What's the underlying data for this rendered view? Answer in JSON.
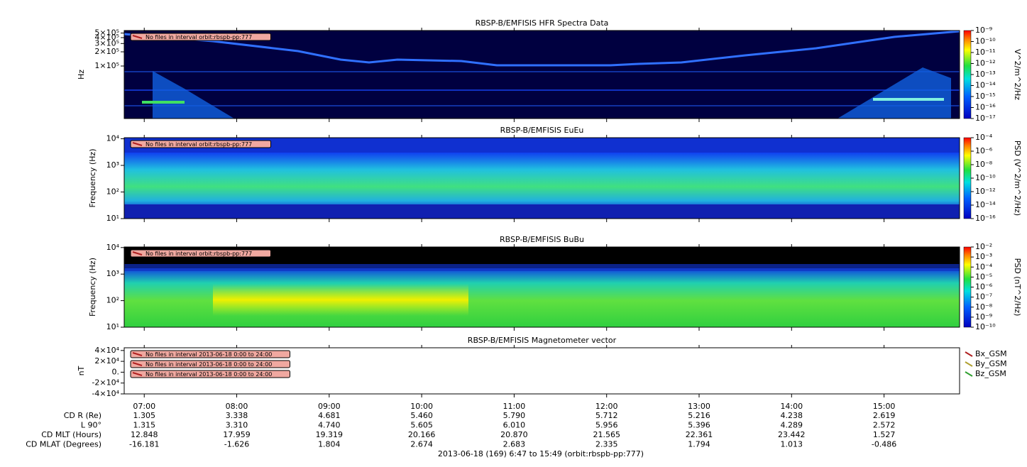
{
  "time_axis": {
    "xlim": [
      407,
      949
    ],
    "xticks": [
      {
        "value": 420,
        "label": "07:00"
      },
      {
        "value": 480,
        "label": "08:00"
      },
      {
        "value": 540,
        "label": "09:00"
      },
      {
        "value": 600,
        "label": "10:00"
      },
      {
        "value": 660,
        "label": "11:00"
      },
      {
        "value": 720,
        "label": "12:00"
      },
      {
        "value": 780,
        "label": "13:00"
      },
      {
        "value": 840,
        "label": "14:00"
      },
      {
        "value": 900,
        "label": "15:00"
      }
    ]
  },
  "panels": [
    {
      "title": "RBSP-B/EMFISIS  HFR Spectra Data",
      "ylabel": "Hz",
      "ylog": true,
      "ylim": [
        7700,
        566000
      ],
      "yticks": [
        {
          "value": 500000,
          "label": "5×10⁵"
        },
        {
          "value": 400000,
          "label": "4×10⁵"
        },
        {
          "value": 300000,
          "label": "3×10⁵"
        },
        {
          "value": 200000,
          "label": "2×10⁵"
        },
        {
          "value": 100000,
          "label": "1×10⁵"
        }
      ],
      "colorbar": {
        "label": "V^2/m^2/Hz",
        "zlim": [
          1e-17,
          1e-09
        ],
        "zticks": [
          {
            "value": 1e-09,
            "label": "10⁻⁹"
          },
          {
            "value": 1e-10,
            "label": "10⁻¹⁰"
          },
          {
            "value": 1e-11,
            "label": "10⁻¹¹"
          },
          {
            "value": 1e-12,
            "label": "10⁻¹²"
          },
          {
            "value": 1e-13,
            "label": "10⁻¹³"
          },
          {
            "value": 1e-14,
            "label": "10⁻¹⁴"
          },
          {
            "value": 1e-15,
            "label": "10⁻¹⁵"
          },
          {
            "value": 1e-16,
            "label": "10⁻¹⁶"
          },
          {
            "value": 1e-17,
            "label": "10⁻¹⁷"
          }
        ]
      },
      "notes": [
        "No files in interval orbit:rbspb-pp:777"
      ]
    },
    {
      "title": "RBSP-B/EMFISIS  EuEu",
      "ylabel": "Frequency (Hz)",
      "ylog": true,
      "ylim": [
        10,
        11000
      ],
      "yticks": [
        {
          "value": 10,
          "label": "10¹"
        },
        {
          "value": 100,
          "label": "10²"
        },
        {
          "value": 1000,
          "label": "10³"
        },
        {
          "value": 10000,
          "label": "10⁴"
        }
      ],
      "colorbar": {
        "label": "PSD (V^2/m^2/Hz)",
        "zlim": [
          1e-16,
          0.0001
        ],
        "zticks": [
          {
            "value": 0.0001,
            "label": "10⁻⁴"
          },
          {
            "value": 1e-06,
            "label": "10⁻⁶"
          },
          {
            "value": 1e-08,
            "label": "10⁻⁸"
          },
          {
            "value": 1e-10,
            "label": "10⁻¹⁰"
          },
          {
            "value": 1e-12,
            "label": "10⁻¹²"
          },
          {
            "value": 1e-14,
            "label": "10⁻¹⁴"
          },
          {
            "value": 1e-16,
            "label": "10⁻¹⁶"
          }
        ]
      },
      "notes": [
        "No files in interval orbit:rbspb-pp:777"
      ]
    },
    {
      "title": "RBSP-B/EMFISIS  BuBu",
      "ylabel": "Frequency (Hz)",
      "ylog": true,
      "ylim": [
        10,
        10500
      ],
      "yticks": [
        {
          "value": 10,
          "label": "10¹"
        },
        {
          "value": 100,
          "label": "10²"
        },
        {
          "value": 1000,
          "label": "10³"
        },
        {
          "value": 10000,
          "label": "10⁴"
        }
      ],
      "colorbar": {
        "label": "PSD (nT^2/Hz)",
        "zlim": [
          1e-10,
          0.01
        ],
        "zticks": [
          {
            "value": 0.01,
            "label": "10⁻²"
          },
          {
            "value": 0.001,
            "label": "10⁻³"
          },
          {
            "value": 0.0001,
            "label": "10⁻⁴"
          },
          {
            "value": 1e-05,
            "label": "10⁻⁵"
          },
          {
            "value": 1e-06,
            "label": "10⁻⁶"
          },
          {
            "value": 1e-07,
            "label": "10⁻⁷"
          },
          {
            "value": 1e-08,
            "label": "10⁻⁸"
          },
          {
            "value": 1e-09,
            "label": "10⁻⁹"
          },
          {
            "value": 1e-10,
            "label": "10⁻¹⁰"
          }
        ]
      },
      "notes": [
        "No files in interval orbit:rbspb-pp:777"
      ]
    },
    {
      "title": "RBSP-B/EMFISIS  Magnetometer vector",
      "ylabel": "nT",
      "ylog": false,
      "ylim": [
        -40000,
        45000
      ],
      "yticks": [
        {
          "value": 40000,
          "label": "4×10⁴"
        },
        {
          "value": 20000,
          "label": "2×10⁴"
        },
        {
          "value": 0,
          "label": "0."
        },
        {
          "value": -20000,
          "label": "-2×10⁴"
        },
        {
          "value": -40000,
          "label": "-4×10⁴"
        }
      ],
      "legend": [
        {
          "name": "Bx_GSM",
          "color": "#b02020"
        },
        {
          "name": "By_GSM",
          "color": "#b0a030"
        },
        {
          "name": "Bz_GSM",
          "color": "#30a030"
        }
      ],
      "notes": [
        "No files in interval 2013-06-18 0:00 to 24:00",
        "No files in interval 2013-06-18 0:00 to 24:00",
        "No files in interval 2013-06-18 0:00 to 24:00"
      ]
    }
  ],
  "ephemeris": {
    "rows": [
      {
        "label": "CD R (Re)",
        "values": [
          "1.305",
          "3.338",
          "4.681",
          "5.460",
          "5.790",
          "5.712",
          "5.216",
          "4.238",
          "2.619"
        ]
      },
      {
        "label": "L 90°",
        "values": [
          "1.315",
          "3.310",
          "4.740",
          "5.605",
          "6.010",
          "5.956",
          "5.396",
          "4.289",
          "2.572"
        ]
      },
      {
        "label": "CD MLT (Hours)",
        "values": [
          "12.848",
          "17.959",
          "19.319",
          "20.166",
          "20.870",
          "21.565",
          "22.361",
          "23.442",
          "1.527"
        ]
      },
      {
        "label": "CD MLAT (Degrees)",
        "values": [
          "-16.181",
          "-1.626",
          "1.804",
          "2.674",
          "2.683",
          "2.335",
          "1.794",
          "1.013",
          "-0.486"
        ]
      }
    ]
  },
  "footer": "2013-06-18 (169) 6:47 to 15:49 (orbit:rbspb-pp:777)"
}
